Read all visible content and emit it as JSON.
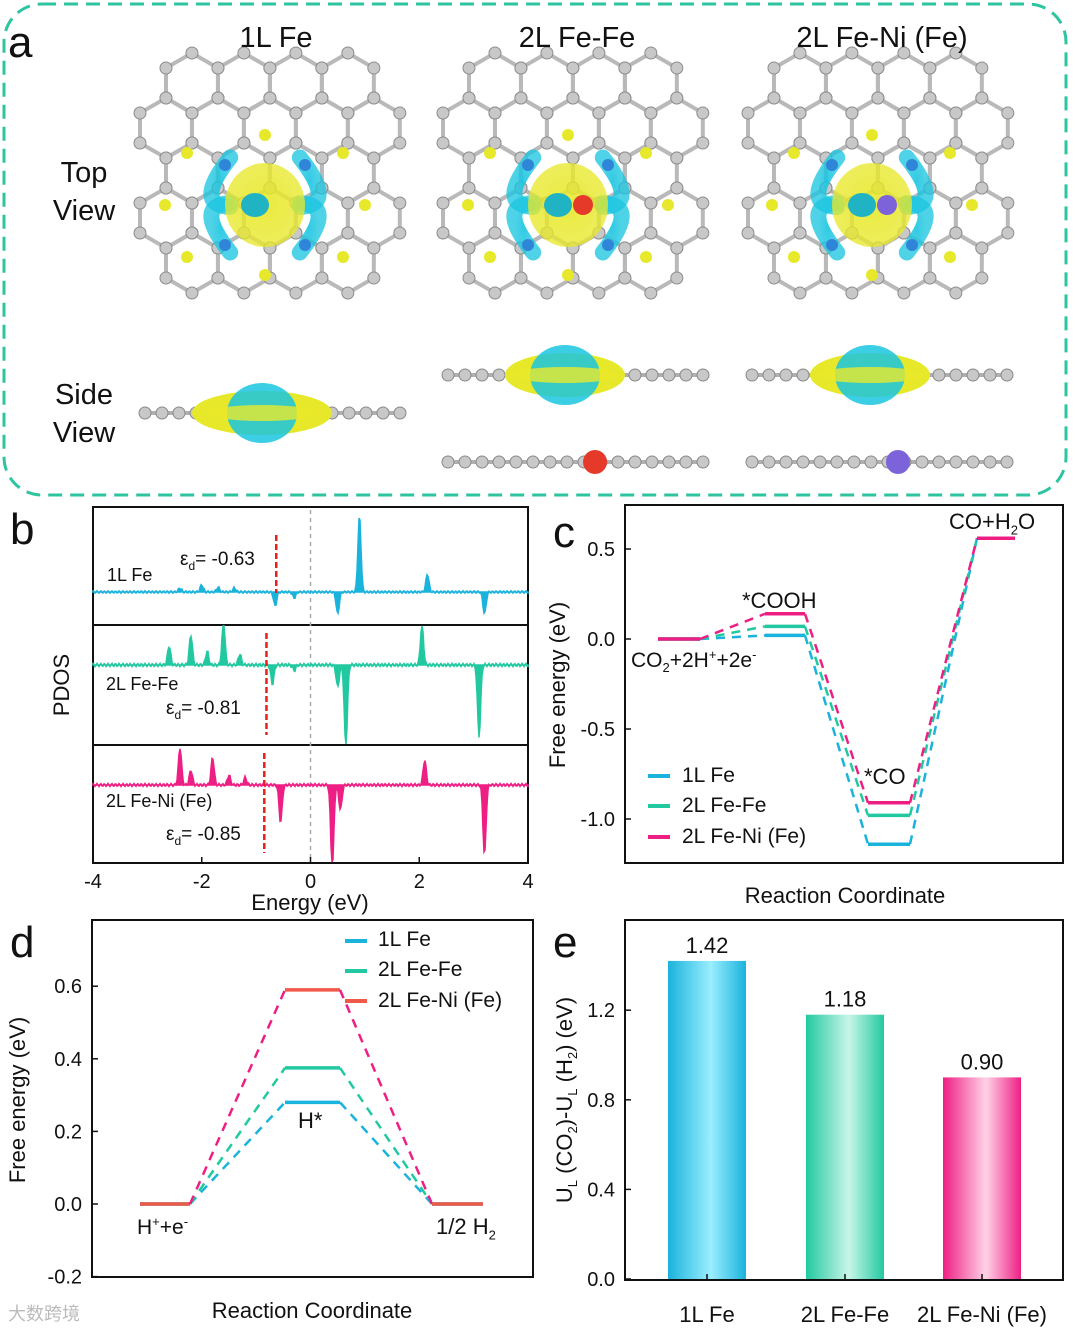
{
  "colors": {
    "1L Fe": "#1ab3dc",
    "2L Fe-Fe": "#22c9a0",
    "2L Fe-Ni (Fe)": "#ee1f84",
    "border": "#2ec4a0",
    "ed_line": "#e8201c",
    "dNi": "#f0584a"
  },
  "panel_a": {
    "label": "a",
    "titles": [
      "1L Fe",
      "2L Fe-Fe",
      "2L Fe-Ni (Fe)"
    ],
    "top_view": "Top\nView",
    "side_view": "Side\nView"
  },
  "watermark": "大数跨境",
  "chart_data": [
    {
      "id": "b",
      "label": "b",
      "type": "area",
      "xlabel": "Energy (eV)",
      "ylabel": "PDOS",
      "xlim": [
        -4,
        4
      ],
      "xticks": [
        "-4",
        "-2",
        "0",
        "2",
        "4"
      ],
      "fermi": 0,
      "series": [
        {
          "name": "1L Fe",
          "label": "1L Fe",
          "ed_text": "= -0.63",
          "ed": -0.63,
          "peaks": [
            [
              -2.4,
              0.1
            ],
            [
              -2.0,
              0.18
            ],
            [
              -1.7,
              0.12
            ],
            [
              -1.4,
              0.1
            ],
            [
              -0.65,
              -0.35
            ],
            [
              -0.3,
              -0.15
            ],
            [
              0.5,
              -0.55
            ],
            [
              0.9,
              1.9
            ],
            [
              2.15,
              0.45
            ],
            [
              3.2,
              -0.55
            ]
          ]
        },
        {
          "name": "2L Fe-Fe",
          "label": "2L Fe-Fe",
          "ed_text": "= -0.81",
          "ed": -0.81,
          "peaks": [
            [
              -2.6,
              0.35
            ],
            [
              -2.2,
              0.55
            ],
            [
              -1.9,
              0.25
            ],
            [
              -1.6,
              0.8
            ],
            [
              -1.3,
              0.2
            ],
            [
              -0.7,
              -0.35
            ],
            [
              -0.3,
              -0.1
            ],
            [
              0.5,
              -0.4
            ],
            [
              0.65,
              -1.5
            ],
            [
              2.05,
              0.75
            ],
            [
              3.1,
              -1.3
            ]
          ]
        },
        {
          "name": "2L Fe-Ni (Fe)",
          "label": "2L Fe-Ni (Fe)",
          "ed_text": "= -0.85",
          "ed": -0.85,
          "peaks": [
            [
              -2.4,
              0.75
            ],
            [
              -2.2,
              0.3
            ],
            [
              -1.8,
              0.55
            ],
            [
              -1.5,
              0.2
            ],
            [
              -1.2,
              0.15
            ],
            [
              -0.55,
              -0.75
            ],
            [
              0.4,
              -1.7
            ],
            [
              0.55,
              -0.5
            ],
            [
              2.1,
              0.5
            ],
            [
              3.2,
              -1.4
            ]
          ]
        }
      ]
    },
    {
      "id": "c",
      "label": "c",
      "type": "line",
      "title": "",
      "xlabel": "Reaction Coordinate",
      "ylabel": "Free energy (eV)",
      "ylim": [
        -1.2,
        0.6
      ],
      "yticks": [
        "0.5",
        "0.0",
        "-0.5",
        "-1.0"
      ],
      "ytick_values": [
        0.5,
        0,
        -0.5,
        -1.0
      ],
      "states": [
        "CO2+2H++2e-",
        "*COOH",
        "*CO",
        "CO+H2O"
      ],
      "state_labels": {
        "s0": "CO",
        "s0b": "+2H",
        "s0c": "+2e",
        "s1": "*COOH",
        "s2": "*CO",
        "s3a": "CO+H",
        "s3b": "O",
        "sub2": "2",
        "sup_plus": "+",
        "sup_minus": "-"
      },
      "legend": "bottom-left",
      "series": [
        {
          "name": "1L Fe",
          "values": [
            0,
            0.02,
            -1.14,
            0.56
          ]
        },
        {
          "name": "2L Fe-Fe",
          "values": [
            0,
            0.07,
            -0.98,
            0.56
          ]
        },
        {
          "name": "2L Fe-Ni (Fe)",
          "values": [
            0,
            0.14,
            -0.91,
            0.56
          ]
        }
      ]
    },
    {
      "id": "d",
      "label": "d",
      "type": "line",
      "xlabel": "Reaction Coordinate",
      "ylabel": "Free energy (eV)",
      "ylim": [
        -0.2,
        0.65
      ],
      "yticks": [
        "0.6",
        "0.4",
        "0.2",
        "0.0",
        "-0.2"
      ],
      "ytick_values": [
        0.6,
        0.4,
        0.2,
        0,
        -0.2
      ],
      "states": [
        "H++e-",
        "H*",
        "1/2 H2"
      ],
      "state_labels": {
        "s0a": "H",
        "s0b": "+e",
        "s1": "H*",
        "s2": "1/2 H",
        "sub2": "2",
        "sup_plus": "+",
        "sup_minus": "-"
      },
      "legend": "top-right",
      "series": [
        {
          "name": "1L Fe",
          "values": [
            0,
            0.28,
            0
          ]
        },
        {
          "name": "2L Fe-Fe",
          "values": [
            0,
            0.375,
            0
          ]
        },
        {
          "name": "2L Fe-Ni (Fe)",
          "values": [
            0,
            0.59,
            0
          ]
        }
      ]
    },
    {
      "id": "e",
      "label": "e",
      "type": "bar",
      "ylabel": "U_L (CO2)-U_L (H2) (eV)",
      "ylabel_parts": {
        "u": "U",
        "l": "L",
        "co2": " (CO",
        "two": "2",
        "mid": ")-U",
        "h2": " (H",
        "end": ") (eV)"
      },
      "ylim": [
        0,
        1.5
      ],
      "yticks": [
        "0.0",
        "0.4",
        "0.8",
        "1.2"
      ],
      "ytick_values": [
        0,
        0.4,
        0.8,
        1.2
      ],
      "categories": [
        "1L Fe",
        "2L Fe-Fe",
        "2L Fe-Ni (Fe)"
      ],
      "values": [
        1.42,
        1.18,
        0.9
      ],
      "value_labels": [
        "1.42",
        "1.18",
        "0.90"
      ]
    }
  ]
}
